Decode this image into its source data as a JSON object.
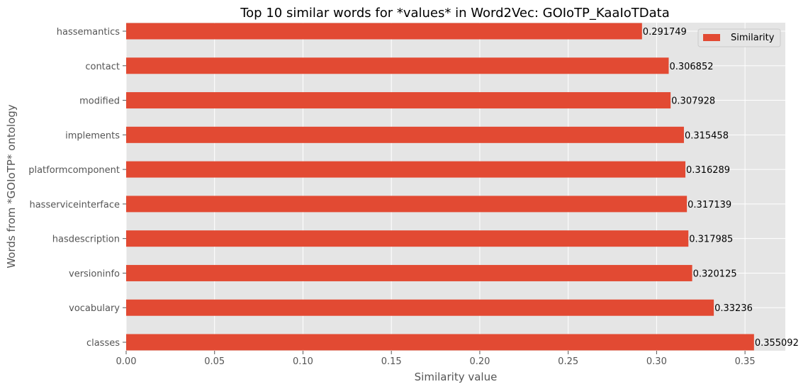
{
  "chart_data": {
    "type": "bar",
    "orientation": "horizontal",
    "title": "Top 10 similar words for *values* in Word2Vec: GOIoTP_KaaIoTData",
    "xlabel": "Similarity value",
    "ylabel": "Words from *GOIoTP* ontology",
    "categories": [
      "classes",
      "vocabulary",
      "versioninfo",
      "hasdescription",
      "hasserviceinterface",
      "platformcomponent",
      "implements",
      "modified",
      "contact",
      "hassemantics"
    ],
    "series": [
      {
        "name": "Similarity",
        "values": [
          0.355092,
          0.33236,
          0.320125,
          0.317985,
          0.317139,
          0.316289,
          0.315458,
          0.307928,
          0.306852,
          0.291749
        ],
        "labels": [
          "0.355092",
          "0.33236",
          "0.320125",
          "0.317985",
          "0.317139",
          "0.316289",
          "0.315458",
          "0.307928",
          "0.306852",
          "0.291749"
        ],
        "color": "#E24A33"
      }
    ],
    "xlim": [
      0,
      0.3728
    ],
    "xticks": [
      0.0,
      0.05,
      0.1,
      0.15,
      0.2,
      0.25,
      0.3,
      0.35
    ],
    "xtick_labels": [
      "0.00",
      "0.05",
      "0.10",
      "0.15",
      "0.20",
      "0.25",
      "0.30",
      "0.35"
    ],
    "grid": true,
    "legend_position": "top-right",
    "colors": {
      "background": "#E5E5E5",
      "grid": "#FFFFFF",
      "tick_text": "#555555"
    }
  }
}
